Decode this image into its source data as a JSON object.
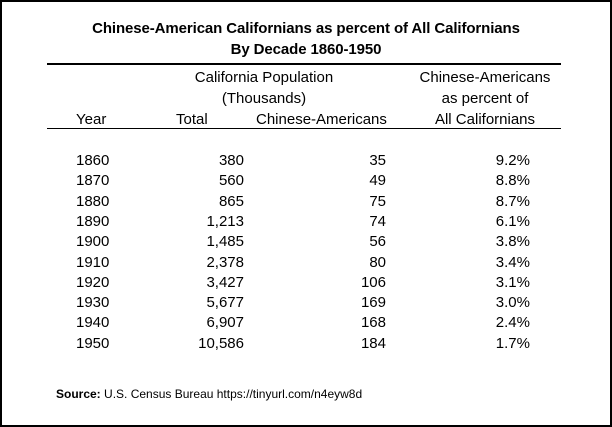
{
  "title_line1": "Chinese-American Californians as percent of All Californians",
  "title_line2": "By Decade 1860-1950",
  "headers": {
    "group_line1": "California Population",
    "group_line2": "(Thousands)",
    "year": "Year",
    "total": "Total",
    "chinese": "Chinese-Americans",
    "pct_line1": "Chinese-Americans",
    "pct_line2": "as percent of",
    "pct_line3": "All Californians"
  },
  "rows": [
    {
      "year": "1860",
      "total": "380",
      "chinese": "35",
      "pct": "9.2%"
    },
    {
      "year": "1870",
      "total": "560",
      "chinese": "49",
      "pct": "8.8%"
    },
    {
      "year": "1880",
      "total": "865",
      "chinese": "75",
      "pct": "8.7%"
    },
    {
      "year": "1890",
      "total": "1,213",
      "chinese": "74",
      "pct": "6.1%"
    },
    {
      "year": "1900",
      "total": "1,485",
      "chinese": "56",
      "pct": "3.8%"
    },
    {
      "year": "1910",
      "total": "2,378",
      "chinese": "80",
      "pct": "3.4%"
    },
    {
      "year": "1920",
      "total": "3,427",
      "chinese": "106",
      "pct": "3.1%"
    },
    {
      "year": "1930",
      "total": "5,677",
      "chinese": "169",
      "pct": "3.0%"
    },
    {
      "year": "1940",
      "total": "6,907",
      "chinese": "168",
      "pct": "2.4%"
    },
    {
      "year": "1950",
      "total": "10,586",
      "chinese": "184",
      "pct": "1.7%"
    }
  ],
  "source": {
    "label": "Source:",
    "text": "U.S. Census Bureau  https://tinyurl.com/n4eyw8d"
  }
}
